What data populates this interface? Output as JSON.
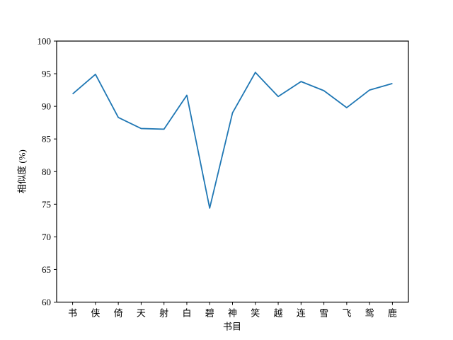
{
  "figure": {
    "background_color": "#ffffff",
    "plot_background_color": "#ffffff",
    "spine_color": "#000000"
  },
  "chart_data": {
    "type": "line",
    "title": "",
    "xlabel": "书目",
    "ylabel": "相似度 (%)",
    "categories": [
      "书",
      "侠",
      "倚",
      "天",
      "射",
      "白",
      "碧",
      "神",
      "笑",
      "越",
      "连",
      "雪",
      "飞",
      "鸳",
      "鹿"
    ],
    "series": [
      {
        "name": "相似度",
        "color": "#1f77b4",
        "values": [
          91.9,
          94.9,
          88.3,
          86.6,
          86.5,
          91.7,
          74.4,
          89.0,
          95.2,
          91.5,
          93.8,
          92.4,
          89.8,
          92.5,
          93.5
        ]
      }
    ],
    "ylim": [
      60,
      100
    ],
    "yticks": [
      60,
      65,
      70,
      75,
      80,
      85,
      90,
      95,
      100
    ],
    "grid": false,
    "legend": "none",
    "tick_label_color": "#000000"
  }
}
